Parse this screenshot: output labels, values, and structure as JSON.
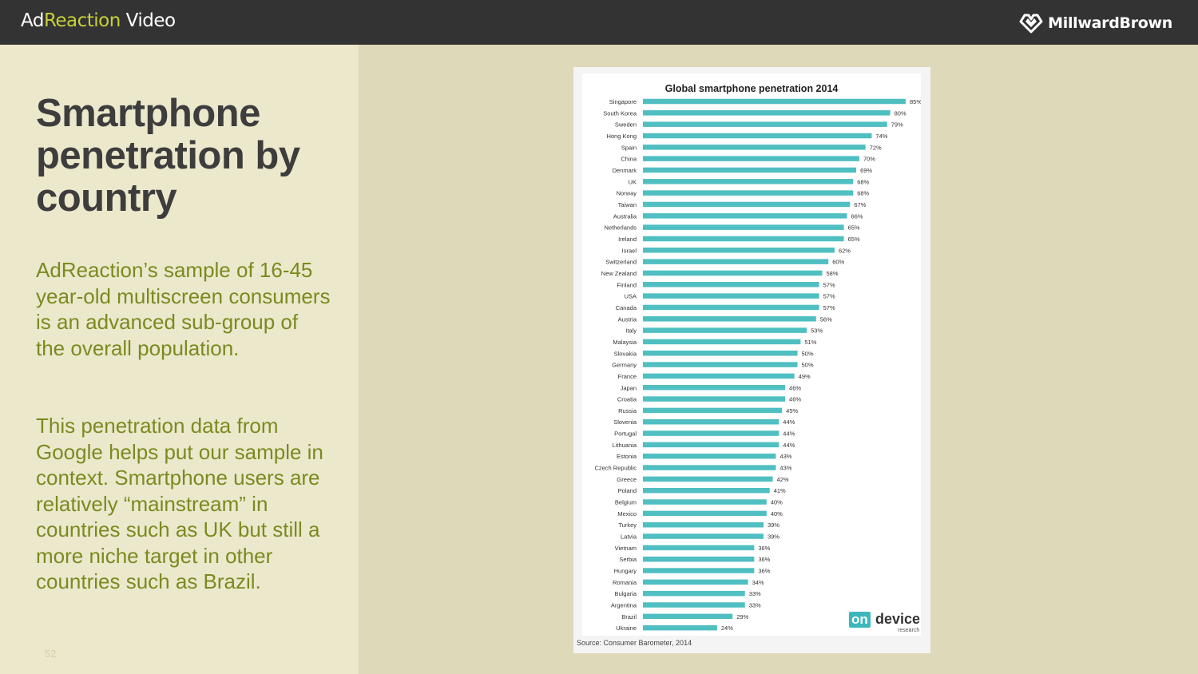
{
  "header": {
    "brand_prefix": "Ad",
    "brand_accent": "Reaction",
    "brand_suffix": " Video",
    "logo_text": "MillwardBrown",
    "logo_icon": "heart-diamond-icon"
  },
  "left": {
    "title": "Smartphone penetration by country",
    "para1": "AdReaction’s sample of 16-45 year-old multiscreen consumers is an advanced sub-group of the overall population.",
    "para2": "This penetration data from Google helps put our sample in context. Smartphone users are relatively “mainstream” in countries such as UK but still a more niche target in other countries such as Brazil.",
    "page_number": "52"
  },
  "colors": {
    "bar": "#4fbfc1",
    "title": "#3d3d3d",
    "body_text": "#7b8a1f",
    "accent": "#c8cf3a",
    "header_bg": "#333333"
  },
  "chart_data": {
    "type": "bar",
    "orientation": "horizontal",
    "title": "Global smartphone penetration 2014",
    "source": "Source: Consumer Barometer, 2014",
    "value_suffix": "%",
    "xlim": [
      0,
      85
    ],
    "categories": [
      "Singapore",
      "South Korea",
      "Sweden",
      "Hong Kong",
      "Spain",
      "China",
      "Denmark",
      "UK",
      "Norway",
      "Taiwan",
      "Australia",
      "Netherlands",
      "Ireland",
      "Israel",
      "Switzerland",
      "New Zealand",
      "Finland",
      "USA",
      "Canada",
      "Austria",
      "Italy",
      "Malaysia",
      "Slovakia",
      "Germany",
      "France",
      "Japan",
      "Croatia",
      "Russia",
      "Slovenia",
      "Portugal",
      "Lithuania",
      "Estonia",
      "Czech Republic",
      "Greece",
      "Poland",
      "Belgium",
      "Mexico",
      "Turkey",
      "Latvia",
      "Vietnam",
      "Serbia",
      "Hungary",
      "Romania",
      "Bulgaria",
      "Argentina",
      "Brazil",
      "Ukraine"
    ],
    "values": [
      85,
      80,
      79,
      74,
      72,
      70,
      69,
      68,
      68,
      67,
      66,
      65,
      65,
      62,
      60,
      58,
      57,
      57,
      57,
      56,
      53,
      51,
      50,
      50,
      49,
      46,
      46,
      45,
      44,
      44,
      44,
      43,
      43,
      42,
      41,
      40,
      40,
      39,
      39,
      36,
      36,
      36,
      34,
      33,
      33,
      29,
      24
    ],
    "logo": {
      "on": "on",
      "device": "device",
      "research": "research"
    }
  }
}
